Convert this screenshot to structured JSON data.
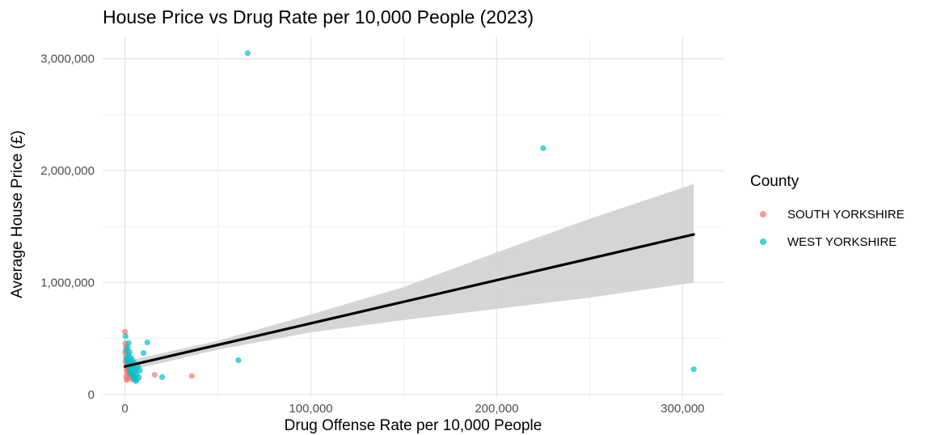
{
  "chart_data": {
    "type": "scatter",
    "title": "House Price vs Drug Rate per 10,000 People (2023)",
    "xlabel": "Drug Offense Rate per 10,000 People",
    "ylabel": "Average House Price (£)",
    "xlim": [
      -12000,
      322000
    ],
    "ylim": [
      -30000,
      3200000
    ],
    "x_ticks": [
      {
        "value": 0,
        "label": "0"
      },
      {
        "value": 100000,
        "label": "100,000"
      },
      {
        "value": 200000,
        "label": "200,000"
      },
      {
        "value": 300000,
        "label": "300,000"
      }
    ],
    "y_ticks": [
      {
        "value": 0,
        "label": "0"
      },
      {
        "value": 1000000,
        "label": "1,000,000"
      },
      {
        "value": 2000000,
        "label": "2,000,000"
      },
      {
        "value": 3000000,
        "label": "3,000,000"
      }
    ],
    "grid": true,
    "legend": {
      "title": "County",
      "position": "right"
    },
    "series": [
      {
        "name": "SOUTH YORKSHIRE",
        "color": "#F8766D",
        "points": [
          [
            0,
            560000
          ],
          [
            200,
            455000
          ],
          [
            400,
            420000
          ],
          [
            100,
            380000
          ],
          [
            500,
            350000
          ],
          [
            800,
            310000
          ],
          [
            300,
            290000
          ],
          [
            1200,
            270000
          ],
          [
            600,
            250000
          ],
          [
            1500,
            235000
          ],
          [
            900,
            220000
          ],
          [
            2000,
            210000
          ],
          [
            1100,
            200000
          ],
          [
            2500,
            190000
          ],
          [
            1700,
            180000
          ],
          [
            3000,
            170000
          ],
          [
            700,
            160000
          ],
          [
            2200,
            150000
          ],
          [
            1300,
            140000
          ],
          [
            4000,
            135000
          ],
          [
            900,
            130000
          ],
          [
            16000,
            175000
          ],
          [
            36000,
            165000
          ]
        ]
      },
      {
        "name": "WEST YORKSHIRE",
        "color": "#00BFC4",
        "points": [
          [
            300,
            520000
          ],
          [
            2000,
            460000
          ],
          [
            12000,
            465000
          ],
          [
            1500,
            420000
          ],
          [
            900,
            390000
          ],
          [
            2500,
            380000
          ],
          [
            10000,
            370000
          ],
          [
            1800,
            350000
          ],
          [
            3000,
            330000
          ],
          [
            600,
            320000
          ],
          [
            4000,
            310000
          ],
          [
            1200,
            300000
          ],
          [
            2800,
            295000
          ],
          [
            5000,
            280000
          ],
          [
            1600,
            270000
          ],
          [
            3500,
            260000
          ],
          [
            7000,
            250000
          ],
          [
            2000,
            245000
          ],
          [
            4500,
            235000
          ],
          [
            6000,
            225000
          ],
          [
            8000,
            215000
          ],
          [
            3200,
            210000
          ],
          [
            5500,
            200000
          ],
          [
            2600,
            195000
          ],
          [
            4200,
            185000
          ],
          [
            6500,
            175000
          ],
          [
            3800,
            170000
          ],
          [
            5200,
            160000
          ],
          [
            7500,
            150000
          ],
          [
            4800,
            140000
          ],
          [
            6200,
            130000
          ],
          [
            5800,
            120000
          ],
          [
            20000,
            155000
          ],
          [
            61000,
            305000
          ],
          [
            66000,
            3050000
          ],
          [
            225000,
            2200000
          ],
          [
            306000,
            225000
          ]
        ]
      }
    ],
    "trend_line": {
      "x": [
        0,
        306000
      ],
      "y": [
        250000,
        1430000
      ],
      "color": "#000000"
    },
    "confidence_band": {
      "x": [
        0,
        50000,
        100000,
        150000,
        200000,
        250000,
        306000
      ],
      "lower": [
        205000,
        400000,
        555000,
        665000,
        765000,
        865000,
        1000000
      ],
      "upper": [
        295000,
        480000,
        715000,
        960000,
        1270000,
        1570000,
        1880000
      ],
      "color": "#D3D3D3"
    }
  }
}
